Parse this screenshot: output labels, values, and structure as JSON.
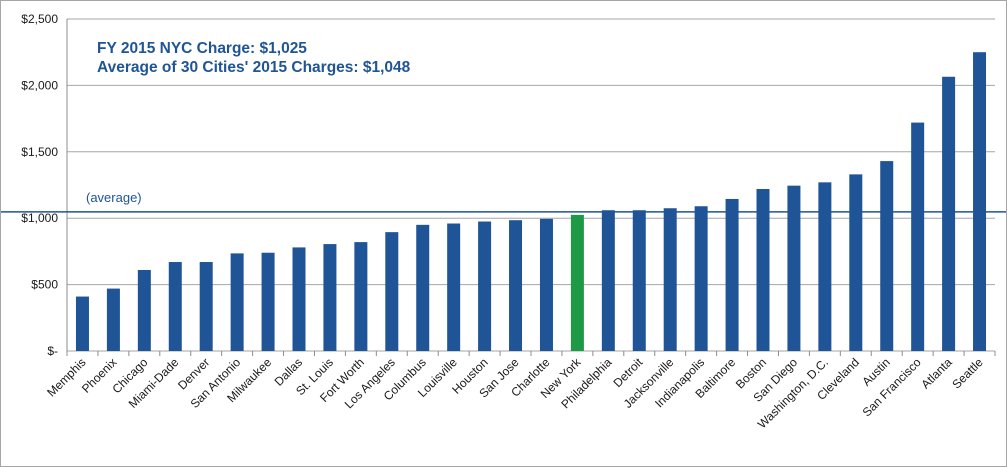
{
  "annotations": {
    "line1": "FY 2015 NYC Charge: $1,025",
    "line2": "Average of 30 Cities' 2015 Charges: $1,048",
    "average_label": "(average)"
  },
  "colors": {
    "bar_default": "#1f5496",
    "bar_highlight": "#1e9a46",
    "average_line": "#1f5496",
    "gridline": "#a6a6a6",
    "text": "#1f5496"
  },
  "chart_data": {
    "type": "bar",
    "title": "",
    "xlabel": "",
    "ylabel": "",
    "ylim": [
      0,
      2500
    ],
    "y_ticks": [
      0,
      500,
      1000,
      1500,
      2000,
      2500
    ],
    "y_tick_labels": [
      "$-",
      "$500",
      "$1,000",
      "$1,500",
      "$2,000",
      "$2,500"
    ],
    "grid": true,
    "legend": "none",
    "average": 1048,
    "highlight_category": "New York",
    "categories": [
      "Memphis",
      "Phoenix",
      "Chicago",
      "Miami-Dade",
      "Denver",
      "San Antonio",
      "Milwaukee",
      "Dallas",
      "St. Louis",
      "Fort Worth",
      "Los Angeles",
      "Columbus",
      "Louisville",
      "Houston",
      "San Jose",
      "Charlotte",
      "New York",
      "Philadelphia",
      "Detroit",
      "Jacksonville",
      "Indianapolis",
      "Baltimore",
      "Boston",
      "San Diego",
      "Washington, D.C.",
      "Cleveland",
      "Austin",
      "San Francisco",
      "Atlanta",
      "Seattle"
    ],
    "values": [
      410,
      470,
      610,
      670,
      670,
      735,
      740,
      780,
      805,
      820,
      895,
      950,
      960,
      975,
      985,
      995,
      1025,
      1060,
      1060,
      1075,
      1090,
      1145,
      1220,
      1245,
      1270,
      1330,
      1430,
      1720,
      2065,
      2250
    ]
  }
}
